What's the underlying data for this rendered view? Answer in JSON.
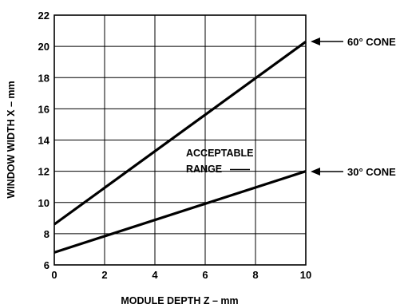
{
  "chart_data": {
    "type": "line",
    "title": "",
    "xlabel": "MODULE DEPTH Z – mm",
    "ylabel": "WINDOW WIDTH X – mm",
    "xlim": [
      0,
      10
    ],
    "ylim": [
      6,
      22
    ],
    "x_ticks": [
      0,
      2,
      4,
      6,
      8,
      10
    ],
    "y_ticks": [
      6,
      8,
      10,
      12,
      14,
      16,
      18,
      20,
      22
    ],
    "grid": true,
    "legend": "none",
    "series": [
      {
        "name": "60° CONE",
        "x": [
          0,
          10
        ],
        "y": [
          8.6,
          20.3
        ]
      },
      {
        "name": "30° CONE",
        "x": [
          0,
          10
        ],
        "y": [
          6.8,
          12.0
        ]
      }
    ],
    "annotations": [
      {
        "line1": "ACCEPTABLE",
        "line2": "RANGE"
      }
    ]
  }
}
